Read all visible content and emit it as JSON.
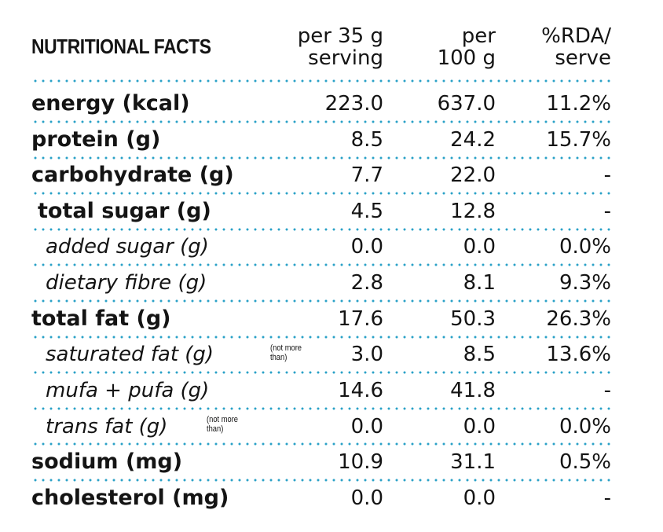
{
  "header": {
    "title": "NUTRITIONAL FACTS",
    "col1_line1": "per 35 g",
    "col1_line2": "serving",
    "col2_line1": "per",
    "col2_line2": "100 g",
    "col3_line1": "%RDA/",
    "col3_line2": "serve"
  },
  "rows": [
    {
      "label": "energy (kcal)",
      "per_serving": "223.0",
      "per_100g": "637.0",
      "rda": "11.2%"
    },
    {
      "label": "protein (g)",
      "per_serving": "8.5",
      "per_100g": "24.2",
      "rda": "15.7%"
    },
    {
      "label": "carbohydrate (g)",
      "per_serving": "7.7",
      "per_100g": "22.0",
      "rda": "-"
    },
    {
      "label": "total sugar (g)",
      "per_serving": "4.5",
      "per_100g": "12.8",
      "rda": "-"
    },
    {
      "label": "added sugar (g)",
      "per_serving": "0.0",
      "per_100g": "0.0",
      "rda": "0.0%"
    },
    {
      "label": "dietary fibre (g)",
      "per_serving": "2.8",
      "per_100g": "8.1",
      "rda": "9.3%"
    },
    {
      "label": "total fat (g)",
      "per_serving": "17.6",
      "per_100g": "50.3",
      "rda": "26.3%"
    },
    {
      "label": "saturated fat (g)",
      "note_line1": "(not more",
      "note_line2": "than)",
      "per_serving": "3.0",
      "per_100g": "8.5",
      "rda": "13.6%"
    },
    {
      "label": "mufa + pufa (g)",
      "per_serving": "14.6",
      "per_100g": "41.8",
      "rda": "-"
    },
    {
      "label": "trans fat (g)",
      "note_line1": "(not more",
      "note_line2": "than)",
      "per_serving": "0.0",
      "per_100g": "0.0",
      "rda": "0.0%"
    },
    {
      "label": "sodium (mg)",
      "per_serving": "10.9",
      "per_100g": "31.1",
      "rda": "0.5%"
    },
    {
      "label": "cholesterol (mg)",
      "per_serving": "0.0",
      "per_100g": "0.0",
      "rda": "-"
    }
  ],
  "colors": {
    "dots": "#2aa1c7",
    "text": "#141414",
    "background": "#ffffff"
  }
}
